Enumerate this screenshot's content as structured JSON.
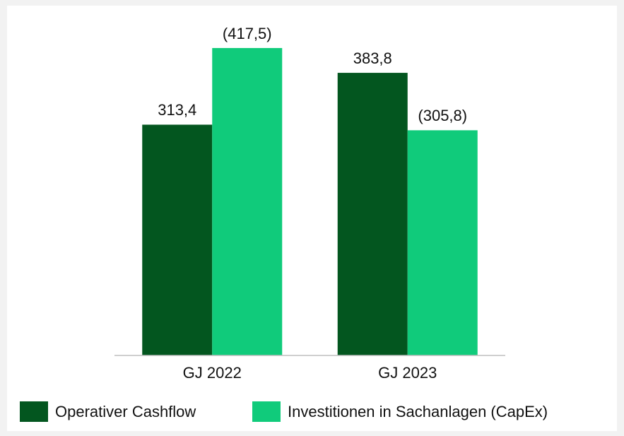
{
  "chart_data": {
    "type": "bar",
    "categories": [
      "GJ 2022",
      "GJ 2023"
    ],
    "series": [
      {
        "name": "Operativer Cashflow",
        "color": "#03561f",
        "values": [
          313.4,
          383.8
        ],
        "value_labels": [
          "313,4",
          "383,8"
        ]
      },
      {
        "name": "Investitionen in Sachanlagen (CapEx)",
        "color": "#10cb7b",
        "values": [
          417.5,
          305.8
        ],
        "value_labels": [
          "(417,5)",
          "(305,8)"
        ]
      }
    ],
    "ylim": [
      0,
      450
    ],
    "legend": "bottom"
  }
}
